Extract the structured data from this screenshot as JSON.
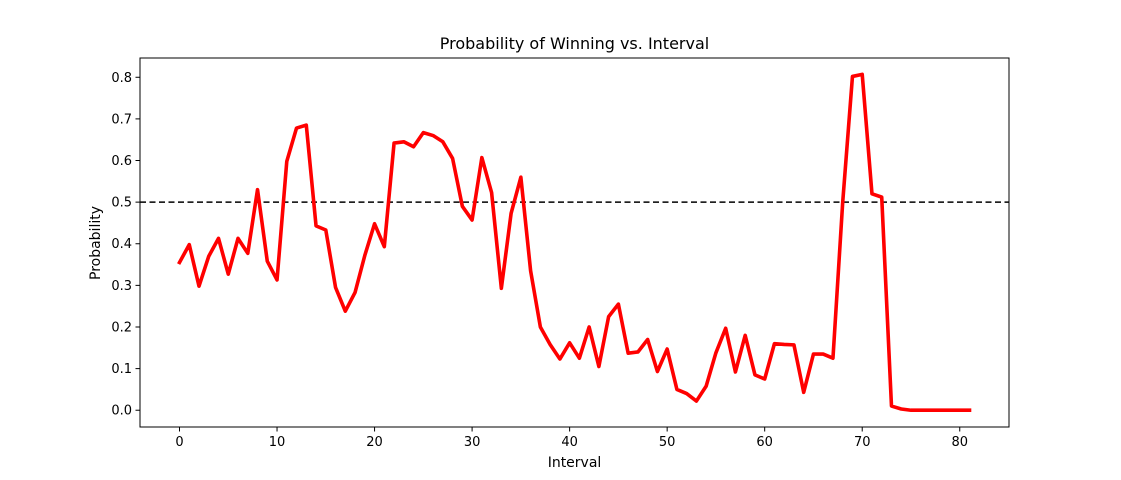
{
  "chart_data": {
    "type": "line",
    "title": "Probability of Winning vs. Interval",
    "xlabel": "Interval",
    "ylabel": "Probability",
    "xlim": [
      -4.05,
      85.05
    ],
    "ylim": [
      -0.0403,
      0.8463
    ],
    "xticks": [
      0,
      10,
      20,
      30,
      40,
      50,
      60,
      70,
      80
    ],
    "yticks": [
      0.0,
      0.1,
      0.2,
      0.3,
      0.4,
      0.5,
      0.6,
      0.7,
      0.8
    ],
    "ytick_labels": [
      "0.0",
      "0.1",
      "0.2",
      "0.3",
      "0.4",
      "0.5",
      "0.6",
      "0.7",
      "0.8"
    ],
    "grid": false,
    "reference_line": {
      "y": 0.5,
      "style": "dashed",
      "color": "#000000"
    },
    "series": [
      {
        "color": "#ff0000",
        "x": [
          0,
          1,
          2,
          3,
          4,
          5,
          6,
          7,
          8,
          9,
          10,
          11,
          12,
          13,
          14,
          15,
          16,
          17,
          18,
          19,
          20,
          21,
          22,
          23,
          24,
          25,
          26,
          27,
          28,
          29,
          30,
          31,
          32,
          33,
          34,
          35,
          36,
          37,
          38,
          39,
          40,
          41,
          42,
          43,
          44,
          45,
          46,
          47,
          48,
          49,
          50,
          51,
          52,
          53,
          54,
          55,
          56,
          57,
          58,
          59,
          60,
          61,
          62,
          63,
          64,
          65,
          66,
          67,
          68,
          69,
          70,
          71,
          72,
          73,
          74,
          75,
          76,
          77,
          78,
          79,
          80,
          81
        ],
        "values": [
          0.355,
          0.398,
          0.298,
          0.37,
          0.413,
          0.327,
          0.413,
          0.377,
          0.53,
          0.358,
          0.313,
          0.598,
          0.678,
          0.685,
          0.443,
          0.433,
          0.295,
          0.238,
          0.283,
          0.372,
          0.448,
          0.393,
          0.642,
          0.645,
          0.633,
          0.667,
          0.66,
          0.645,
          0.605,
          0.49,
          0.457,
          0.607,
          0.523,
          0.293,
          0.473,
          0.56,
          0.335,
          0.2,
          0.158,
          0.123,
          0.162,
          0.125,
          0.2,
          0.105,
          0.225,
          0.255,
          0.137,
          0.14,
          0.17,
          0.093,
          0.147,
          0.05,
          0.04,
          0.022,
          0.058,
          0.138,
          0.197,
          0.092,
          0.18,
          0.085,
          0.075,
          0.16,
          0.158,
          0.157,
          0.043,
          0.135,
          0.135,
          0.125,
          0.5,
          0.802,
          0.807,
          0.52,
          0.512,
          0.01,
          0.003,
          0.0,
          0.0,
          0.0,
          0.0,
          0.0,
          0.0,
          0.0
        ]
      }
    ]
  }
}
